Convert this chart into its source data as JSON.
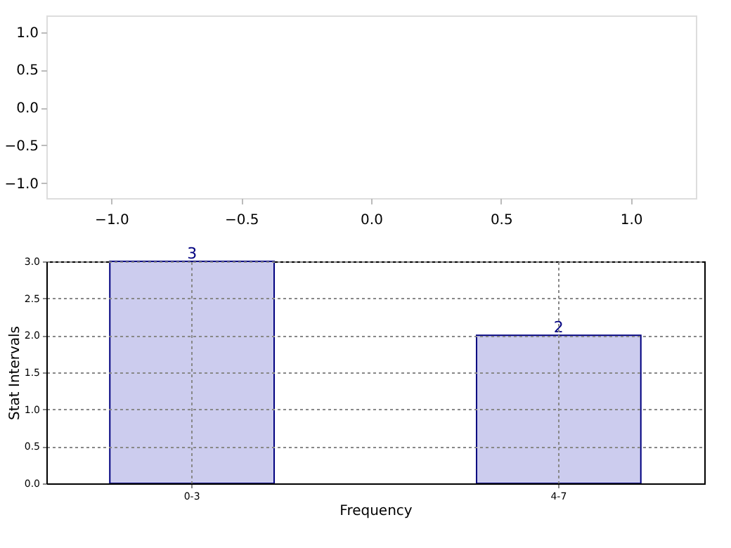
{
  "chart_data": [
    {
      "type": "scatter",
      "xlim": [
        -1.25,
        1.25
      ],
      "ylim": [
        -1.2,
        1.22
      ],
      "xticks": [
        {
          "value": -1,
          "label": "−1.0"
        },
        {
          "value": -0.5,
          "label": "−0.5"
        },
        {
          "value": 0,
          "label": "0.0"
        },
        {
          "value": 0.5,
          "label": "0.5"
        },
        {
          "value": 1,
          "label": "1.0"
        }
      ],
      "yticks": [
        {
          "value": -1,
          "label": "−1.0"
        },
        {
          "value": -0.5,
          "label": "−0.5"
        },
        {
          "value": 0,
          "label": "0.0"
        },
        {
          "value": 0.5,
          "label": "0.5"
        },
        {
          "value": 1,
          "label": "1.0"
        }
      ],
      "grid": false
    },
    {
      "type": "bar",
      "categories": [
        "0-3",
        "4-7"
      ],
      "values": [
        3,
        2
      ],
      "color": "#ccccee",
      "data_labels": true,
      "xlabel": "Frequency",
      "ylabel": "Stat Intervals",
      "ylim": [
        0,
        3
      ],
      "yticks": [
        {
          "value": 0,
          "label": "0.0"
        },
        {
          "value": 0.5,
          "label": "0.5"
        },
        {
          "value": 1,
          "label": "1.0"
        },
        {
          "value": 1.5,
          "label": "1.5"
        },
        {
          "value": 2,
          "label": "2.0"
        },
        {
          "value": 2.5,
          "label": "2.5"
        },
        {
          "value": 3,
          "label": "3.0"
        }
      ],
      "grid": true
    }
  ]
}
